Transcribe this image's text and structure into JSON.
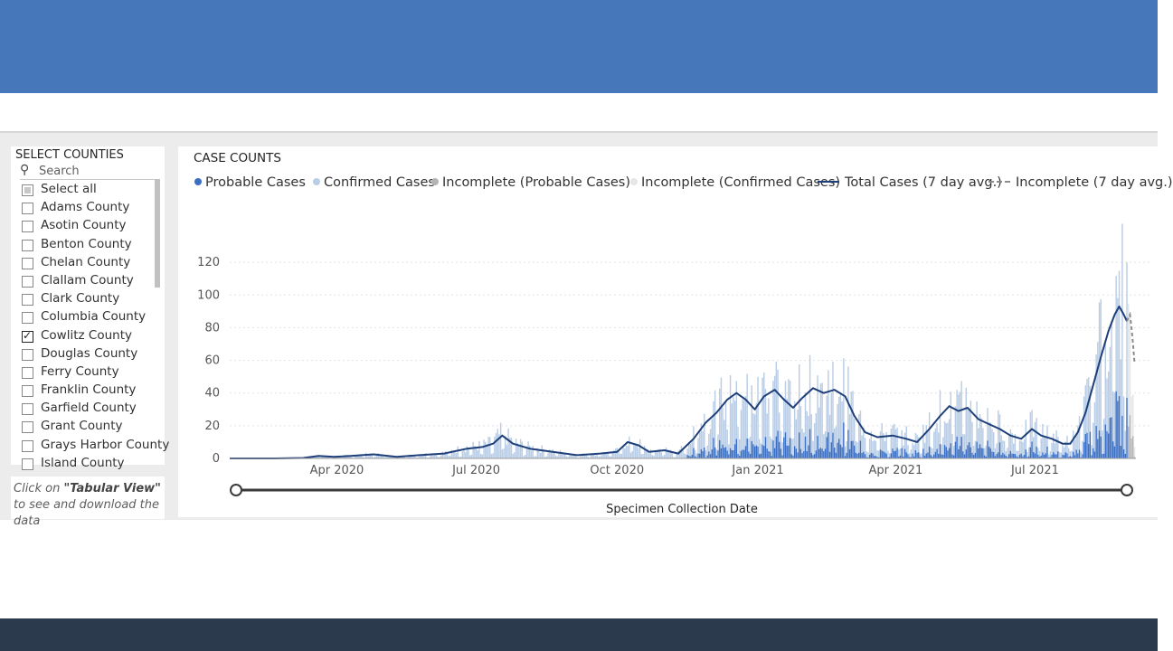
{
  "slicer": {
    "title": "SELECT COUNTIES",
    "search_placeholder": "Search",
    "items": [
      {
        "label": "Select all",
        "state": "partial"
      },
      {
        "label": "Adams County",
        "state": "unchecked"
      },
      {
        "label": "Asotin County",
        "state": "unchecked"
      },
      {
        "label": "Benton County",
        "state": "unchecked"
      },
      {
        "label": "Chelan County",
        "state": "unchecked"
      },
      {
        "label": "Clallam County",
        "state": "unchecked"
      },
      {
        "label": "Clark County",
        "state": "unchecked"
      },
      {
        "label": "Columbia County",
        "state": "unchecked"
      },
      {
        "label": "Cowlitz County",
        "state": "checked"
      },
      {
        "label": "Douglas County",
        "state": "unchecked"
      },
      {
        "label": "Ferry County",
        "state": "unchecked"
      },
      {
        "label": "Franklin County",
        "state": "unchecked"
      },
      {
        "label": "Garfield County",
        "state": "unchecked"
      },
      {
        "label": "Grant County",
        "state": "unchecked"
      },
      {
        "label": "Grays Harbor County",
        "state": "unchecked"
      },
      {
        "label": "Island County",
        "state": "unchecked"
      }
    ]
  },
  "note": {
    "prefix": "Click on ",
    "emph": "\"Tabular View\"",
    "suffix": " to see and download the data"
  },
  "colors": {
    "probable": "#3a6fc4",
    "confirmed": "#b9cde6",
    "incomplete_probable": "#b4b4b4",
    "incomplete_confirmed": "#e6e6e6",
    "line": "#1e3f7a",
    "incomplete_line": "#8a8a8a"
  },
  "chart_data": {
    "type": "bar",
    "title": "CASE COUNTS",
    "xlabel": "Specimen Collection Date",
    "ylabel": "",
    "ylim": [
      0,
      135
    ],
    "y_ticks": [
      0,
      20,
      40,
      60,
      80,
      100,
      120
    ],
    "x_tick_labels": [
      "Apr 2020",
      "Jul 2020",
      "Oct 2020",
      "Jan 2021",
      "Apr 2021",
      "Jul 2021"
    ],
    "x_range": [
      "2020-01-22",
      "2021-08-30"
    ],
    "legend": [
      {
        "name": "Probable Cases",
        "marker": "dot",
        "color_key": "probable"
      },
      {
        "name": "Confirmed Cases",
        "marker": "dot",
        "color_key": "confirmed"
      },
      {
        "name": "Incomplete (Probable Cases)",
        "marker": "dot",
        "color_key": "incomplete_probable"
      },
      {
        "name": "Incomplete (Confirmed Cases)",
        "marker": "dot",
        "color_key": "incomplete_confirmed"
      },
      {
        "name": "Total Cases (7 day avg.)",
        "marker": "line",
        "color_key": "line"
      },
      {
        "name": "Incomplete (7 day avg.)",
        "marker": "dash",
        "color_key": "incomplete_line"
      }
    ],
    "series": [
      {
        "name": "Total Cases (7 day avg.)",
        "points": [
          [
            "2020-01-22",
            0
          ],
          [
            "2020-02-20",
            0
          ],
          [
            "2020-03-10",
            0.3
          ],
          [
            "2020-03-20",
            1.5
          ],
          [
            "2020-03-30",
            1
          ],
          [
            "2020-04-10",
            1.5
          ],
          [
            "2020-04-25",
            2.5
          ],
          [
            "2020-05-10",
            1
          ],
          [
            "2020-05-25",
            2
          ],
          [
            "2020-06-10",
            3
          ],
          [
            "2020-06-25",
            6
          ],
          [
            "2020-07-05",
            7
          ],
          [
            "2020-07-12",
            9
          ],
          [
            "2020-07-18",
            14
          ],
          [
            "2020-07-25",
            9
          ],
          [
            "2020-08-05",
            6
          ],
          [
            "2020-08-20",
            4
          ],
          [
            "2020-09-05",
            2
          ],
          [
            "2020-09-20",
            3
          ],
          [
            "2020-10-01",
            4
          ],
          [
            "2020-10-08",
            10
          ],
          [
            "2020-10-15",
            8
          ],
          [
            "2020-10-22",
            4
          ],
          [
            "2020-11-01",
            5
          ],
          [
            "2020-11-10",
            3
          ],
          [
            "2020-11-20",
            12
          ],
          [
            "2020-11-28",
            22
          ],
          [
            "2020-12-05",
            28
          ],
          [
            "2020-12-12",
            36
          ],
          [
            "2020-12-18",
            40
          ],
          [
            "2020-12-24",
            36
          ],
          [
            "2020-12-30",
            30
          ],
          [
            "2021-01-05",
            38
          ],
          [
            "2021-01-12",
            42
          ],
          [
            "2021-01-18",
            36
          ],
          [
            "2021-01-24",
            31
          ],
          [
            "2021-01-30",
            37
          ],
          [
            "2021-02-06",
            43
          ],
          [
            "2021-02-13",
            40
          ],
          [
            "2021-02-20",
            42
          ],
          [
            "2021-02-27",
            38
          ],
          [
            "2021-03-05",
            26
          ],
          [
            "2021-03-12",
            16
          ],
          [
            "2021-03-20",
            13
          ],
          [
            "2021-03-30",
            14
          ],
          [
            "2021-04-08",
            12
          ],
          [
            "2021-04-15",
            10
          ],
          [
            "2021-04-23",
            18
          ],
          [
            "2021-04-30",
            26
          ],
          [
            "2021-05-06",
            32
          ],
          [
            "2021-05-12",
            29
          ],
          [
            "2021-05-18",
            31
          ],
          [
            "2021-05-25",
            24
          ],
          [
            "2021-06-01",
            21
          ],
          [
            "2021-06-08",
            18
          ],
          [
            "2021-06-15",
            14
          ],
          [
            "2021-06-22",
            12
          ],
          [
            "2021-06-29",
            18
          ],
          [
            "2021-07-05",
            14
          ],
          [
            "2021-07-12",
            12
          ],
          [
            "2021-07-19",
            9
          ],
          [
            "2021-07-24",
            9
          ],
          [
            "2021-07-29",
            16
          ],
          [
            "2021-08-03",
            28
          ],
          [
            "2021-08-08",
            45
          ],
          [
            "2021-08-13",
            62
          ],
          [
            "2021-08-18",
            78
          ],
          [
            "2021-08-22",
            88
          ],
          [
            "2021-08-25",
            93
          ],
          [
            "2021-08-28",
            88
          ],
          [
            "2021-08-30",
            84
          ]
        ]
      },
      {
        "name": "Incomplete (7 day avg.)",
        "points": [
          [
            "2021-08-30",
            84
          ],
          [
            "2021-09-01",
            88
          ],
          [
            "2021-09-02",
            80
          ],
          [
            "2021-09-03",
            70
          ],
          [
            "2021-09-04",
            58
          ]
        ]
      }
    ]
  }
}
